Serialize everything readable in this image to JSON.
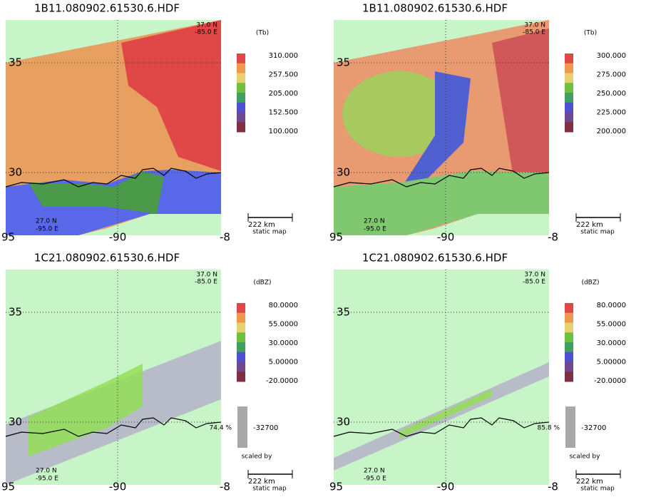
{
  "panels": [
    {
      "title": "1B11.080902.61530.6.HDF",
      "corner_top": [
        "37.0 N",
        "-85.0 E"
      ],
      "corner_bottom": [
        "27.0 N",
        "-95.0 E"
      ],
      "lat_labels": [
        "35",
        "30"
      ],
      "lon_labels": [
        "95",
        "-90",
        "-8"
      ],
      "units": "(Tb)",
      "colorbar_labels": [
        "310.000",
        "257.500",
        "205.000",
        "152.500",
        "100.000"
      ],
      "scale": "222 km",
      "map_note": "static map"
    },
    {
      "title": "1B11.080902.61530.6.HDF",
      "corner_top": [
        "37.0 N",
        "-85.0 E"
      ],
      "corner_bottom": [
        "27.0 N",
        "-95.0 E"
      ],
      "lat_labels": [
        "35",
        "30"
      ],
      "lon_labels": [
        "95",
        "-90",
        "-8"
      ],
      "units": "(Tb)",
      "colorbar_labels": [
        "300.000",
        "275.000",
        "250.000",
        "225.000",
        "200.000"
      ],
      "scale": "222 km",
      "map_note": "static map"
    },
    {
      "title": "1C21.080902.61530.6.HDF",
      "corner_top": [
        "37.0 N",
        "-85.0 E"
      ],
      "corner_bottom": [
        "27.0 N",
        "-95.0 E"
      ],
      "lat_labels": [
        "35",
        "30"
      ],
      "lon_labels": [
        "95",
        "-90",
        "-8"
      ],
      "units": "(dBZ)",
      "colorbar_labels": [
        "80.0000",
        "55.0000",
        "30.0000",
        "5.00000",
        "-20.0000"
      ],
      "percent": "74.4 %",
      "fill_value": "-32700",
      "scaled_by": "scaled by",
      "scale": "222 km",
      "map_note": "static map"
    },
    {
      "title": "1C21.080902.61530.6.HDF",
      "corner_top": [
        "37.0 N",
        "-85.0 E"
      ],
      "corner_bottom": [
        "27.0 N",
        "-95.0 E"
      ],
      "lat_labels": [
        "35",
        "30"
      ],
      "lon_labels": [
        "95",
        "-90",
        "-8"
      ],
      "units": "(dBZ)",
      "colorbar_labels": [
        "80.0000",
        "55.0000",
        "30.0000",
        "5.00000",
        "-20.0000"
      ],
      "percent": "85.8 %",
      "fill_value": "-32700",
      "scaled_by": "scaled by",
      "scale": "222 km",
      "map_note": "static map"
    }
  ]
}
